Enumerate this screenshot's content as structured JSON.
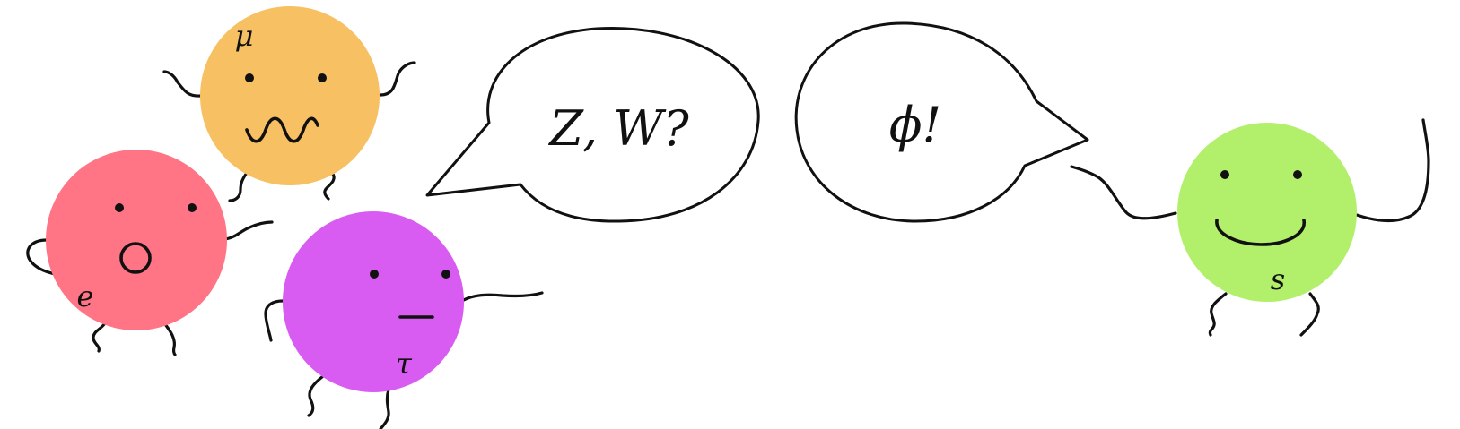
{
  "characters": [
    {
      "id": "muon",
      "label": "μ",
      "color": "#F7C062"
    },
    {
      "id": "electron",
      "label": "e",
      "color": "#FF7585"
    },
    {
      "id": "tau",
      "label": "τ",
      "color": "#D95CF2"
    },
    {
      "id": "scalar",
      "label": "s",
      "color": "#B2EF6A"
    }
  ],
  "speech": [
    {
      "id": "question",
      "text": "Z, W?"
    },
    {
      "id": "answer",
      "text": "ϕ!"
    }
  ],
  "outline_color": "#111111"
}
